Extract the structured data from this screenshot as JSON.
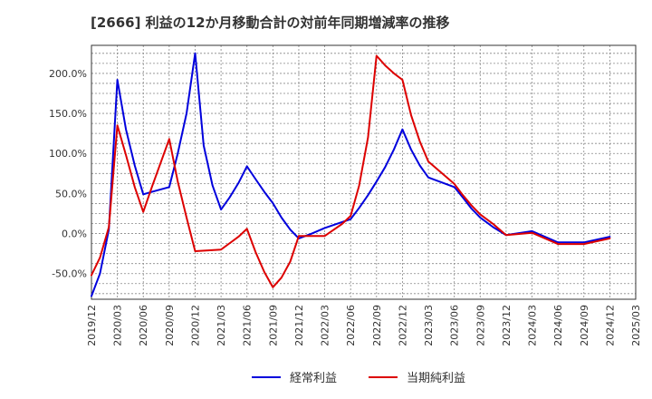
{
  "chart_data": {
    "type": "line",
    "title": "[2666]  利益の12か月移動合計の対前年同期増減率の推移",
    "x": [
      "2019/12",
      "2020/03",
      "2020/06",
      "2020/09",
      "2020/12",
      "2021/03",
      "2021/06",
      "2021/09",
      "2021/12",
      "2022/03",
      "2022/06",
      "2022/09",
      "2022/12",
      "2023/03",
      "2023/06",
      "2023/09",
      "2023/12",
      "2024/03",
      "2024/06",
      "2024/09",
      "2024/12",
      "2025/03"
    ],
    "y_ticks": [
      "-50.0%",
      "0.0%",
      "50.0%",
      "100.0%",
      "150.0%",
      "200.0%"
    ],
    "ylim": [
      -82,
      235
    ],
    "grid": true,
    "series": [
      {
        "name": "経常利益",
        "color": "#0000dd",
        "points": [
          [
            0,
            -78
          ],
          [
            0.33,
            -50
          ],
          [
            0.67,
            5
          ],
          [
            1,
            192
          ],
          [
            1.33,
            130
          ],
          [
            1.67,
            85
          ],
          [
            2,
            49
          ],
          [
            2.33,
            52
          ],
          [
            3,
            58
          ],
          [
            3.33,
            100
          ],
          [
            3.67,
            150
          ],
          [
            4,
            225
          ],
          [
            4.33,
            110
          ],
          [
            4.67,
            60
          ],
          [
            5,
            30
          ],
          [
            5.33,
            45
          ],
          [
            5.67,
            63
          ],
          [
            6,
            84
          ],
          [
            6.33,
            68
          ],
          [
            6.67,
            52
          ],
          [
            7,
            38
          ],
          [
            7.33,
            20
          ],
          [
            7.67,
            5
          ],
          [
            8,
            -6
          ],
          [
            8.5,
            0
          ],
          [
            9,
            7
          ],
          [
            10,
            18
          ],
          [
            10.33,
            32
          ],
          [
            10.67,
            48
          ],
          [
            11,
            65
          ],
          [
            11.33,
            83
          ],
          [
            11.67,
            105
          ],
          [
            12,
            130
          ],
          [
            12.33,
            105
          ],
          [
            12.67,
            85
          ],
          [
            13,
            70
          ],
          [
            14,
            58
          ],
          [
            14.33,
            45
          ],
          [
            14.67,
            31
          ],
          [
            15,
            20
          ],
          [
            15.5,
            8
          ],
          [
            16,
            -2
          ],
          [
            17,
            3
          ],
          [
            18,
            -11
          ],
          [
            19,
            -11
          ],
          [
            20,
            -4
          ]
        ]
      },
      {
        "name": "当期純利益",
        "color": "#dd0000",
        "points": [
          [
            0,
            -52
          ],
          [
            0.33,
            -30
          ],
          [
            0.67,
            8
          ],
          [
            1,
            135
          ],
          [
            1.33,
            98
          ],
          [
            1.67,
            58
          ],
          [
            2,
            27
          ],
          [
            2.33,
            58
          ],
          [
            3,
            118
          ],
          [
            3.33,
            65
          ],
          [
            3.67,
            20
          ],
          [
            4,
            -22
          ],
          [
            5,
            -20
          ],
          [
            5.67,
            -4
          ],
          [
            6,
            6
          ],
          [
            6.33,
            -23
          ],
          [
            6.67,
            -48
          ],
          [
            7,
            -67
          ],
          [
            7.33,
            -55
          ],
          [
            7.67,
            -35
          ],
          [
            8,
            -3
          ],
          [
            8.5,
            -3
          ],
          [
            9,
            -3
          ],
          [
            9.67,
            12
          ],
          [
            10,
            22
          ],
          [
            10.33,
            60
          ],
          [
            10.67,
            120
          ],
          [
            11,
            222
          ],
          [
            11.33,
            210
          ],
          [
            11.67,
            200
          ],
          [
            12,
            192
          ],
          [
            12.33,
            148
          ],
          [
            12.67,
            115
          ],
          [
            13,
            90
          ],
          [
            14,
            62
          ],
          [
            14.33,
            48
          ],
          [
            14.67,
            35
          ],
          [
            15,
            24
          ],
          [
            15.5,
            12
          ],
          [
            16,
            -2
          ],
          [
            17,
            1
          ],
          [
            18,
            -13
          ],
          [
            19,
            -13
          ],
          [
            20,
            -6
          ]
        ]
      }
    ],
    "legend": {
      "position": "bottom-center"
    }
  }
}
